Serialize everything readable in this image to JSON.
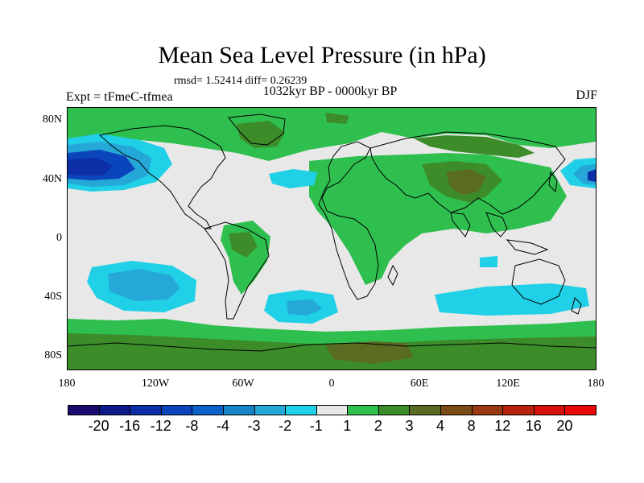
{
  "title": "Mean Sea Level Pressure (in hPa)",
  "stats": "rmsd= 1.52414 diff= 0.26239",
  "period": "1032kyr BP - 0000kyr BP",
  "experiment": "Expt = tFmeC-tfmea",
  "season": "DJF",
  "latitude_labels": [
    "80N",
    "40N",
    "0",
    "40S",
    "80S"
  ],
  "longitude_labels": [
    "180",
    "120W",
    "60W",
    "0",
    "60E",
    "120E",
    "180"
  ],
  "colorbar": {
    "labels": [
      "-20",
      "-16",
      "-12",
      "-8",
      "-4",
      "-3",
      "-2",
      "-1",
      "1",
      "2",
      "3",
      "4",
      "8",
      "12",
      "16",
      "20"
    ],
    "colors": [
      "#1a0a6e",
      "#0d1a8c",
      "#0c2ea6",
      "#0a45bb",
      "#0a62c8",
      "#1583c6",
      "#25a8d8",
      "#1fd0e6",
      "#e8e8e8",
      "#2fbf4f",
      "#3c8c2a",
      "#5a6b22",
      "#7a4b14",
      "#993a12",
      "#b8220e",
      "#d8100c",
      "#e80808"
    ]
  },
  "colors": {
    "neutral": "#e8e8e8",
    "green_light": "#2fbf4f",
    "green_dark": "#3c8c2a",
    "olive": "#5a6b22",
    "brown": "#7a4b14",
    "cyan": "#1fd0e6",
    "blue_mid": "#25a8d8",
    "blue_deep": "#0c2ea6",
    "coast": "#000000"
  }
}
